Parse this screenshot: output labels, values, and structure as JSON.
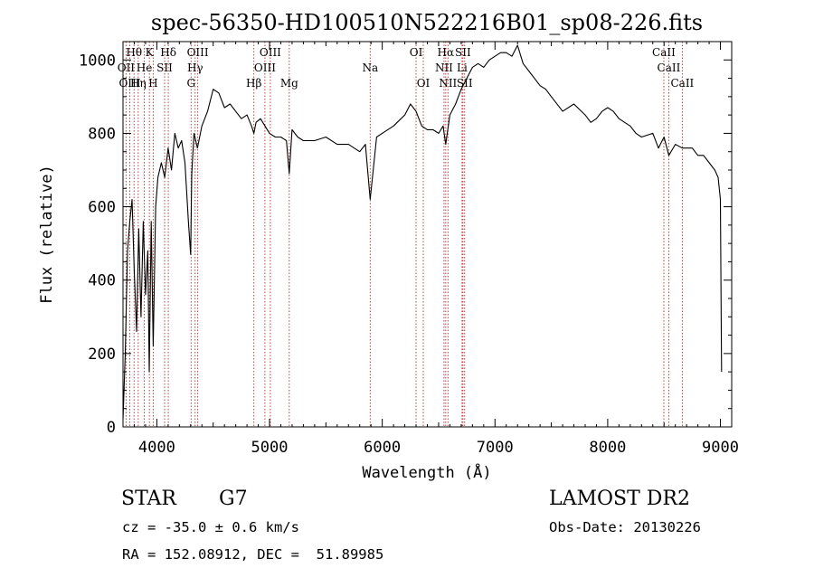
{
  "chart_data": {
    "type": "line",
    "title": "spec-56350-HD100510N522216B01_sp08-226.fits",
    "xlabel": "Wavelength (Å)",
    "ylabel": "Flux (relative)",
    "xlim": [
      3700,
      9100
    ],
    "ylim": [
      0,
      1050
    ],
    "x_ticks": [
      4000,
      5000,
      6000,
      7000,
      8000,
      9000
    ],
    "y_ticks": [
      0,
      200,
      400,
      600,
      800,
      1000
    ],
    "grid": false,
    "line_color": "#000000",
    "marker_color": "#b03030",
    "series": [
      {
        "x": [
          3700,
          3720,
          3740,
          3760,
          3780,
          3800,
          3820,
          3840,
          3860,
          3880,
          3900,
          3920,
          3933,
          3950,
          3968,
          3990,
          4010,
          4040,
          4070,
          4100,
          4130,
          4160,
          4190,
          4220,
          4250,
          4280,
          4300,
          4310,
          4330,
          4360,
          4400,
          4450,
          4500,
          4550,
          4600,
          4650,
          4700,
          4750,
          4800,
          4840,
          4861,
          4880,
          4920,
          4960,
          5000,
          5050,
          5100,
          5150,
          5175,
          5200,
          5250,
          5300,
          5400,
          5500,
          5600,
          5700,
          5800,
          5850,
          5893,
          5950,
          6000,
          6100,
          6200,
          6250,
          6300,
          6350,
          6400,
          6450,
          6500,
          6540,
          6563,
          6600,
          6650,
          6700,
          6750,
          6800,
          6850,
          6900,
          6950,
          7000,
          7050,
          7100,
          7150,
          7200,
          7250,
          7300,
          7350,
          7400,
          7450,
          7500,
          7600,
          7700,
          7800,
          7850,
          7900,
          7950,
          8000,
          8050,
          8100,
          8150,
          8200,
          8250,
          8300,
          8400,
          8450,
          8500,
          8542,
          8600,
          8662,
          8700,
          8750,
          8800,
          8850,
          8900,
          8950,
          8980,
          9000,
          9010
        ],
        "values": [
          20,
          200,
          480,
          560,
          620,
          420,
          260,
          540,
          300,
          560,
          360,
          480,
          150,
          560,
          220,
          600,
          680,
          720,
          680,
          760,
          700,
          800,
          760,
          780,
          720,
          560,
          470,
          690,
          800,
          760,
          820,
          860,
          920,
          910,
          870,
          880,
          860,
          840,
          850,
          820,
          800,
          830,
          840,
          820,
          800,
          790,
          790,
          780,
          690,
          810,
          790,
          780,
          780,
          790,
          770,
          770,
          750,
          770,
          620,
          790,
          800,
          820,
          850,
          880,
          860,
          820,
          810,
          810,
          800,
          820,
          770,
          850,
          880,
          920,
          950,
          980,
          990,
          980,
          1000,
          1010,
          1020,
          1020,
          1010,
          1040,
          990,
          970,
          950,
          930,
          920,
          900,
          860,
          880,
          850,
          830,
          840,
          860,
          870,
          860,
          840,
          830,
          820,
          800,
          790,
          800,
          760,
          790,
          740,
          770,
          760,
          760,
          760,
          740,
          740,
          720,
          700,
          680,
          620,
          150
        ]
      }
    ],
    "line_markers": [
      {
        "label": "Hθ",
        "x": 3798,
        "row": 1
      },
      {
        "label": "K",
        "x": 3934,
        "row": 1
      },
      {
        "label": "Hδ",
        "x": 4102,
        "row": 1
      },
      {
        "label": "OIII",
        "x": 4363,
        "row": 1
      },
      {
        "label": "OIII",
        "x": 5007,
        "row": 1
      },
      {
        "label": "OI",
        "x": 6300,
        "row": 1
      },
      {
        "label": "Hα",
        "x": 6563,
        "row": 1
      },
      {
        "label": "SII",
        "x": 6716,
        "row": 1
      },
      {
        "label": "CaII",
        "x": 8498,
        "row": 1
      },
      {
        "label": "OII",
        "x": 3727,
        "row": 2
      },
      {
        "label": "He",
        "x": 3889,
        "row": 2
      },
      {
        "label": "SII",
        "x": 4069,
        "row": 2
      },
      {
        "label": "Hγ",
        "x": 4340,
        "row": 2
      },
      {
        "label": "OIII",
        "x": 4959,
        "row": 2
      },
      {
        "label": "Na",
        "x": 5893,
        "row": 2
      },
      {
        "label": "NII",
        "x": 6548,
        "row": 2
      },
      {
        "label": "Li",
        "x": 6708,
        "row": 2
      },
      {
        "label": "CaII",
        "x": 8542,
        "row": 2
      },
      {
        "label": "OIII",
        "x": 3760,
        "row": 3
      },
      {
        "label": "Hη",
        "x": 3835,
        "row": 3
      },
      {
        "label": "H",
        "x": 3968,
        "row": 3
      },
      {
        "label": "G",
        "x": 4304,
        "row": 3
      },
      {
        "label": "Hβ",
        "x": 4861,
        "row": 3
      },
      {
        "label": "Mg",
        "x": 5175,
        "row": 3
      },
      {
        "label": "OI",
        "x": 6364,
        "row": 3
      },
      {
        "label": "NII",
        "x": 6583,
        "row": 3
      },
      {
        "label": "SII",
        "x": 6731,
        "row": 3
      },
      {
        "label": "CaII",
        "x": 8662,
        "row": 3
      }
    ]
  },
  "info": {
    "object_class": "STAR",
    "subclass": "G7",
    "survey": "LAMOST DR2",
    "redshift_line": "cz = -35.0 ± 0.6 km/s",
    "coords_line": "RA = 152.08912, DEC =  51.89985",
    "obs_date_line": "Obs-Date: 20130226"
  }
}
